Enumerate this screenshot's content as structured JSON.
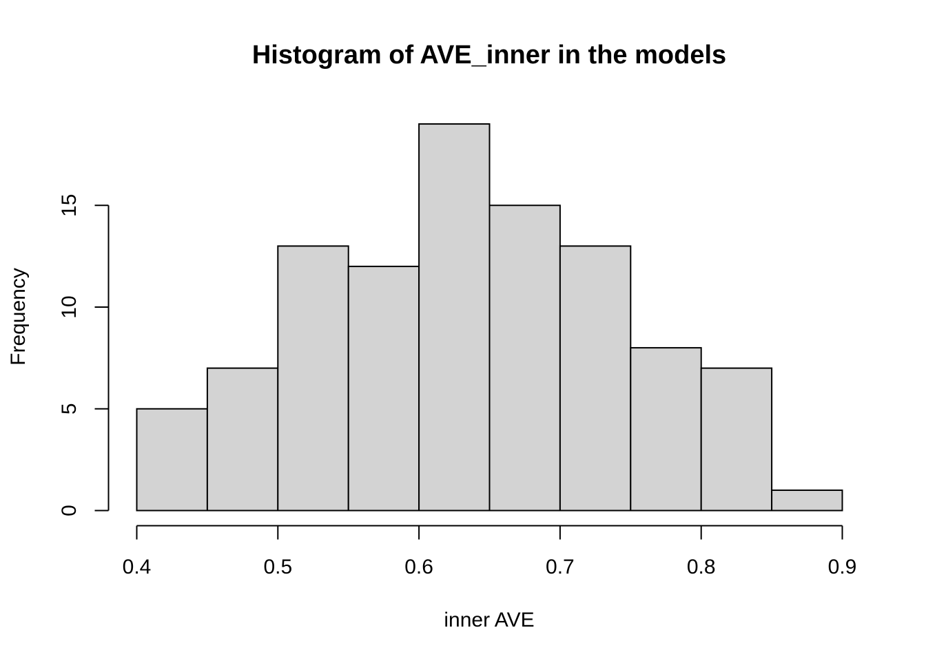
{
  "chart_data": {
    "type": "bar",
    "title": "Histogram of AVE_inner in the models",
    "xlabel": "inner AVE",
    "ylabel": "Frequency",
    "bin_edges": [
      0.4,
      0.45,
      0.5,
      0.55,
      0.6,
      0.65,
      0.7,
      0.75,
      0.8,
      0.85,
      0.9
    ],
    "values": [
      5,
      7,
      13,
      12,
      19,
      15,
      13,
      8,
      7,
      1
    ],
    "xlim": [
      0.4,
      0.9
    ],
    "ylim": [
      0,
      19
    ],
    "x_ticks": [
      0.4,
      0.5,
      0.6,
      0.7,
      0.8,
      0.9
    ],
    "x_tick_labels": [
      "0.4",
      "0.5",
      "0.6",
      "0.7",
      "0.8",
      "0.9"
    ],
    "y_ticks": [
      0,
      5,
      10,
      15
    ],
    "y_tick_labels": [
      "0",
      "5",
      "10",
      "15"
    ],
    "bar_color": "#d3d3d3",
    "edge_color": "#000000",
    "grid": false,
    "legend": "none"
  }
}
